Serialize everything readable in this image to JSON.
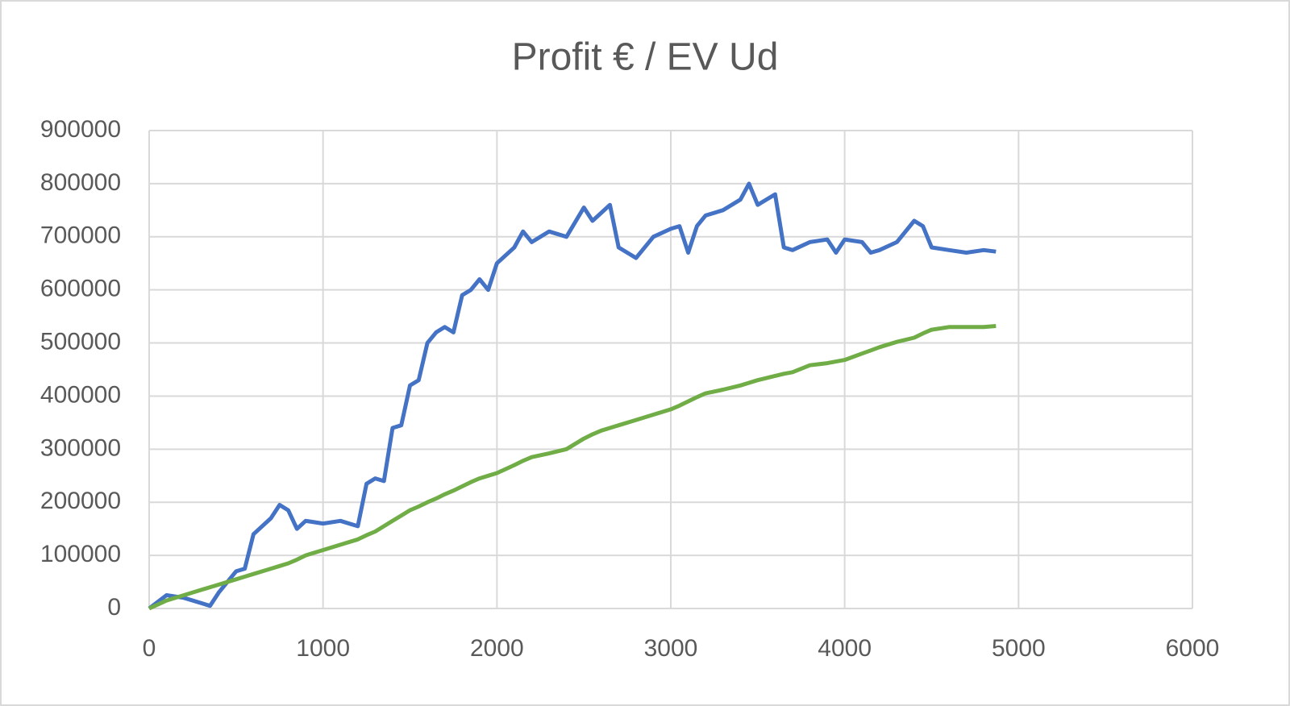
{
  "chart_data": {
    "type": "line",
    "title": "Profit € / EV Ud",
    "x": [
      0,
      100,
      200,
      300,
      350,
      400,
      500,
      550,
      600,
      700,
      750,
      800,
      850,
      900,
      1000,
      1100,
      1200,
      1250,
      1300,
      1350,
      1400,
      1450,
      1500,
      1550,
      1600,
      1650,
      1700,
      1750,
      1800,
      1850,
      1900,
      1950,
      2000,
      2100,
      2150,
      2200,
      2300,
      2400,
      2500,
      2550,
      2600,
      2650,
      2700,
      2800,
      2900,
      3000,
      3050,
      3100,
      3150,
      3200,
      3300,
      3400,
      3450,
      3500,
      3600,
      3650,
      3700,
      3800,
      3900,
      3950,
      4000,
      4100,
      4150,
      4200,
      4300,
      4400,
      4450,
      4500,
      4600,
      4700,
      4800,
      4870
    ],
    "series": [
      {
        "color": "#4472c4",
        "values": [
          0,
          25000,
          20000,
          10000,
          5000,
          30000,
          70000,
          75000,
          140000,
          170000,
          195000,
          185000,
          150000,
          165000,
          160000,
          165000,
          155000,
          235000,
          245000,
          240000,
          340000,
          345000,
          420000,
          430000,
          500000,
          520000,
          530000,
          520000,
          590000,
          600000,
          620000,
          600000,
          650000,
          680000,
          710000,
          690000,
          710000,
          700000,
          755000,
          730000,
          745000,
          760000,
          680000,
          660000,
          700000,
          715000,
          720000,
          670000,
          720000,
          740000,
          750000,
          770000,
          800000,
          760000,
          780000,
          680000,
          675000,
          690000,
          695000,
          670000,
          695000,
          690000,
          670000,
          675000,
          690000,
          730000,
          720000,
          680000,
          675000,
          670000,
          675000,
          672000
        ]
      },
      {
        "color": "#70ad47",
        "values": [
          0,
          15000,
          25000,
          35000,
          40000,
          45000,
          55000,
          60000,
          65000,
          75000,
          80000,
          85000,
          92000,
          100000,
          110000,
          120000,
          130000,
          138000,
          145000,
          155000,
          165000,
          175000,
          185000,
          192000,
          200000,
          207000,
          215000,
          222000,
          230000,
          238000,
          245000,
          250000,
          255000,
          270000,
          278000,
          285000,
          292000,
          300000,
          320000,
          328000,
          335000,
          340000,
          345000,
          355000,
          365000,
          375000,
          382000,
          390000,
          398000,
          405000,
          412000,
          420000,
          425000,
          430000,
          438000,
          442000,
          445000,
          458000,
          462000,
          465000,
          468000,
          480000,
          486000,
          492000,
          502000,
          510000,
          518000,
          525000,
          530000,
          530000,
          530000,
          532000
        ]
      }
    ],
    "xlim": [
      0,
      6000
    ],
    "xticks": [
      0,
      1000,
      2000,
      3000,
      4000,
      5000,
      6000
    ],
    "ylim": [
      0,
      900000
    ],
    "yticks": [
      0,
      100000,
      200000,
      300000,
      400000,
      500000,
      600000,
      700000,
      800000,
      900000
    ],
    "grid": true
  }
}
